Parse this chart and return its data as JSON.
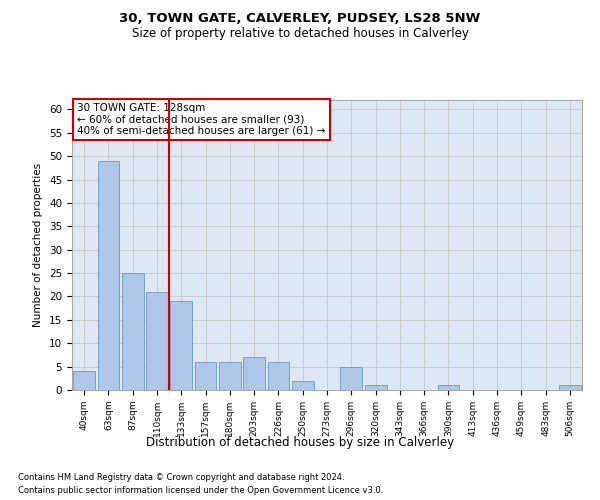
{
  "title1": "30, TOWN GATE, CALVERLEY, PUDSEY, LS28 5NW",
  "title2": "Size of property relative to detached houses in Calverley",
  "xlabel": "Distribution of detached houses by size in Calverley",
  "ylabel": "Number of detached properties",
  "bar_labels": [
    "40sqm",
    "63sqm",
    "87sqm",
    "110sqm",
    "133sqm",
    "157sqm",
    "180sqm",
    "203sqm",
    "226sqm",
    "250sqm",
    "273sqm",
    "296sqm",
    "320sqm",
    "343sqm",
    "366sqm",
    "390sqm",
    "413sqm",
    "436sqm",
    "459sqm",
    "483sqm",
    "506sqm"
  ],
  "bar_values": [
    4,
    49,
    25,
    21,
    19,
    6,
    6,
    7,
    6,
    2,
    0,
    5,
    1,
    0,
    0,
    1,
    0,
    0,
    0,
    0,
    1
  ],
  "bar_color": "#aec6e8",
  "bar_edge_color": "#5a8fc2",
  "annotation_line1": "30 TOWN GATE: 128sqm",
  "annotation_line2": "← 60% of detached houses are smaller (93)",
  "annotation_line3": "40% of semi-detached houses are larger (61) →",
  "annotation_box_color": "#ffffff",
  "annotation_box_edge_color": "#cc0000",
  "ref_line_color": "#cc0000",
  "ylim": [
    0,
    62
  ],
  "yticks": [
    0,
    5,
    10,
    15,
    20,
    25,
    30,
    35,
    40,
    45,
    50,
    55,
    60
  ],
  "grid_color": "#cccccc",
  "bg_color": "#dde8f4",
  "footnote1": "Contains HM Land Registry data © Crown copyright and database right 2024.",
  "footnote2": "Contains public sector information licensed under the Open Government Licence v3.0."
}
